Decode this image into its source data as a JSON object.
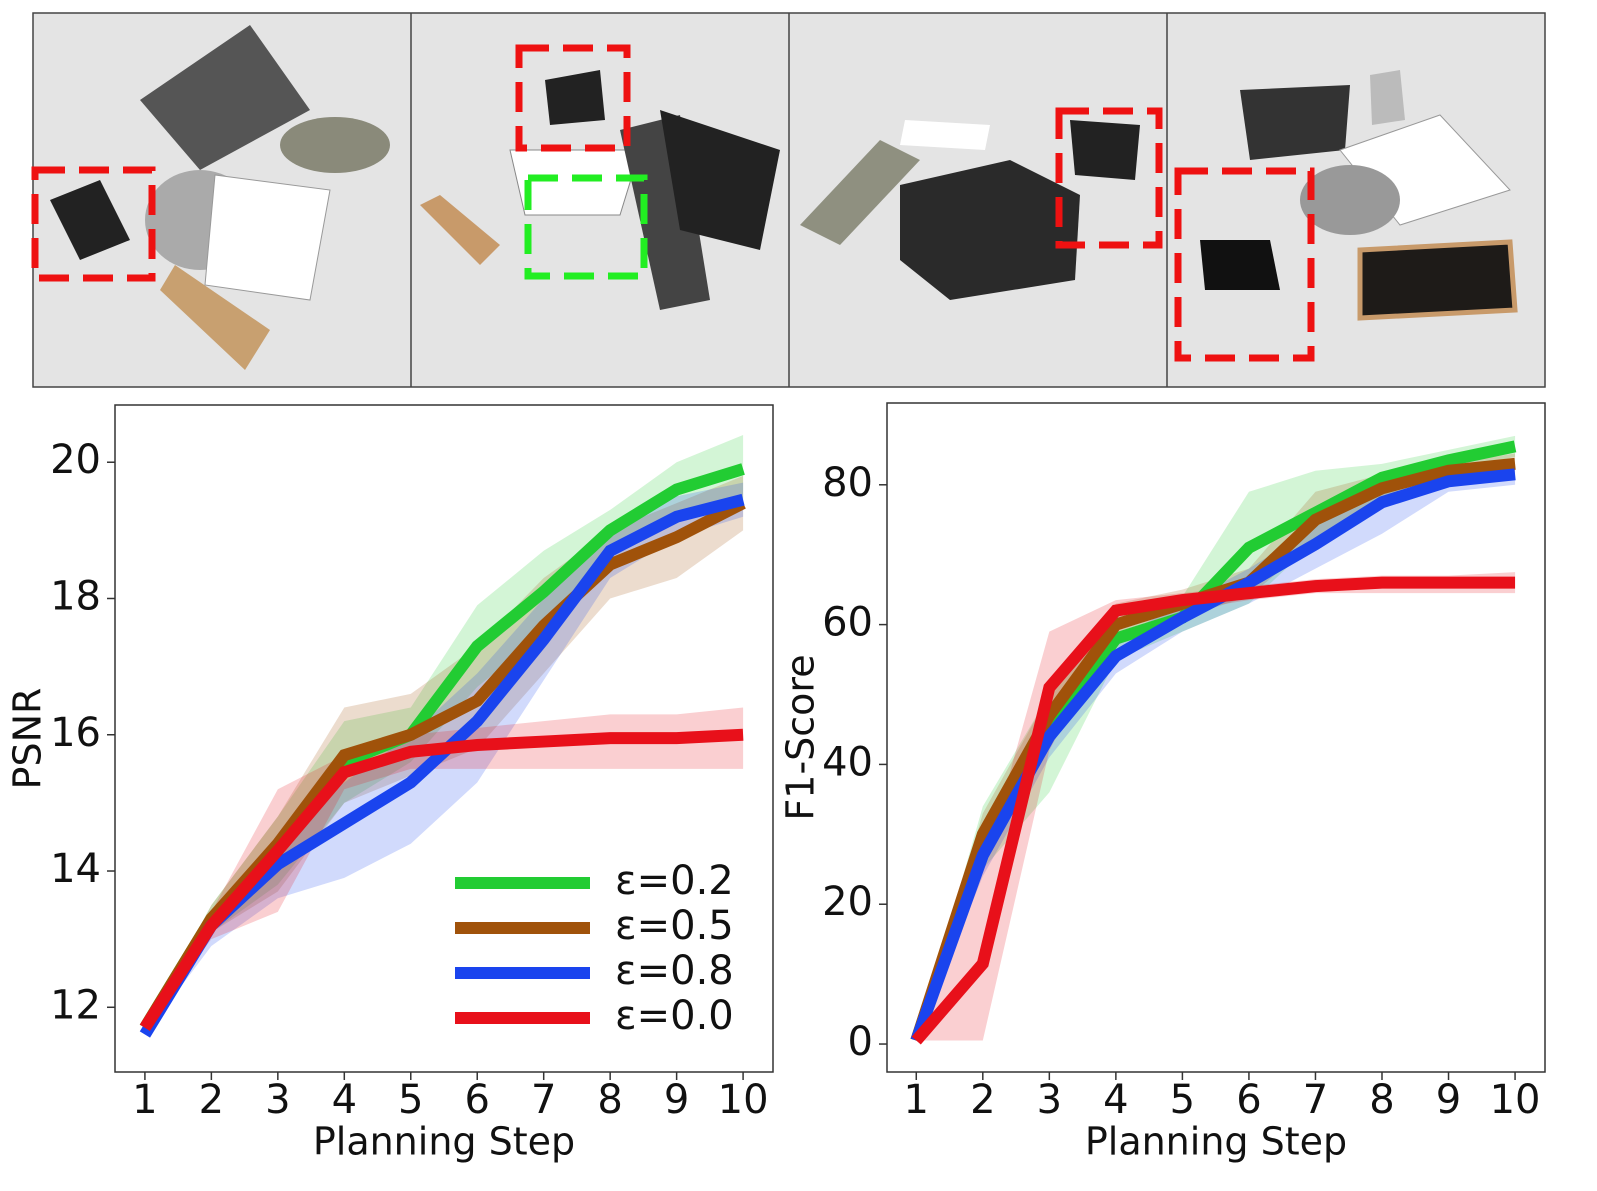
{
  "chart_data": [
    {
      "type": "line",
      "xlabel": "Planning Step",
      "ylabel": "PSNR",
      "x": [
        1,
        2,
        3,
        4,
        5,
        6,
        7,
        8,
        9,
        10
      ],
      "xlim": [
        0.55,
        10.45
      ],
      "xticks": [
        1,
        2,
        3,
        4,
        5,
        6,
        7,
        8,
        9,
        10
      ],
      "ylim": [
        11.05,
        20.84
      ],
      "yticks": [
        12,
        14,
        16,
        18,
        20
      ],
      "legend": true,
      "legend_loc": "lower right",
      "band_opacity": 0.2,
      "series": [
        {
          "name": "ε=0.2",
          "color": "#22cc33",
          "values": [
            11.7,
            13.3,
            14.3,
            15.6,
            16.0,
            17.3,
            18.1,
            19.0,
            19.6,
            19.9
          ],
          "upper": [
            11.7,
            13.5,
            14.8,
            16.2,
            16.4,
            17.9,
            18.7,
            19.3,
            20.0,
            20.4
          ],
          "lower": [
            11.7,
            13.1,
            13.8,
            15.0,
            15.6,
            16.7,
            17.5,
            18.7,
            19.2,
            19.4
          ]
        },
        {
          "name": "ε=0.5",
          "color": "#a0520a",
          "values": [
            11.7,
            13.3,
            14.4,
            15.7,
            16.0,
            16.5,
            17.6,
            18.5,
            18.9,
            19.4
          ],
          "upper": [
            11.7,
            13.5,
            14.8,
            16.4,
            16.6,
            17.3,
            18.3,
            19.0,
            19.4,
            19.8
          ],
          "lower": [
            11.7,
            13.1,
            13.7,
            15.0,
            15.4,
            15.8,
            16.9,
            18.0,
            18.3,
            19.0
          ]
        },
        {
          "name": "ε=0.8",
          "color": "#1a44ee",
          "values": [
            11.6,
            13.2,
            14.1,
            14.7,
            15.3,
            16.2,
            17.4,
            18.7,
            19.2,
            19.45
          ],
          "upper": [
            11.6,
            13.4,
            14.5,
            15.3,
            16.0,
            16.9,
            18.0,
            19.0,
            19.5,
            19.7
          ],
          "lower": [
            11.6,
            12.9,
            13.6,
            13.9,
            14.4,
            15.3,
            16.8,
            18.3,
            18.9,
            19.2
          ]
        },
        {
          "name": "ε=0.0",
          "color": "#e8101a",
          "values": [
            11.7,
            13.2,
            14.3,
            15.45,
            15.75,
            15.85,
            15.9,
            15.95,
            15.95,
            16.0
          ],
          "upper": [
            11.7,
            13.4,
            15.2,
            15.7,
            16.0,
            16.1,
            16.2,
            16.3,
            16.3,
            16.4
          ],
          "lower": [
            11.7,
            13.0,
            13.4,
            15.2,
            15.5,
            15.5,
            15.5,
            15.5,
            15.5,
            15.5
          ]
        }
      ]
    },
    {
      "type": "line",
      "xlabel": "Planning Step",
      "ylabel": "F1-Score",
      "x": [
        1,
        2,
        3,
        4,
        5,
        6,
        7,
        8,
        9,
        10
      ],
      "xlim": [
        0.56,
        10.45
      ],
      "xticks": [
        1,
        2,
        3,
        4,
        5,
        6,
        7,
        8,
        9,
        10
      ],
      "ylim": [
        -4,
        91.7
      ],
      "yticks": [
        0,
        20,
        40,
        60,
        80
      ],
      "legend": false,
      "band_opacity": 0.2,
      "series": [
        {
          "color": "#22cc33",
          "values": [
            0.5,
            29,
            45,
            58,
            61,
            71,
            76,
            81,
            83.5,
            85.5
          ],
          "upper": [
            0.5,
            34,
            50,
            61,
            64,
            79,
            82,
            83,
            85,
            87
          ],
          "lower": [
            0.5,
            25,
            36,
            55,
            59,
            63,
            72,
            78,
            82,
            84
          ]
        },
        {
          "color": "#a0520a",
          "values": [
            0.5,
            30,
            47,
            60,
            63,
            66,
            75,
            79.5,
            82,
            83
          ],
          "upper": [
            0.5,
            33,
            50,
            63,
            65,
            68,
            79,
            81.5,
            83,
            84.5
          ],
          "lower": [
            0.5,
            27,
            44,
            57,
            61,
            64,
            72,
            77,
            81,
            81.5
          ]
        },
        {
          "color": "#1a44ee",
          "values": [
            0.5,
            27,
            44,
            55.5,
            61,
            66,
            71.5,
            77.5,
            80.5,
            81.5
          ],
          "upper": [
            0.5,
            30,
            47,
            58,
            63,
            68,
            74,
            79,
            82,
            83
          ],
          "lower": [
            0.5,
            24,
            41,
            53,
            59,
            63,
            68,
            73,
            79,
            80
          ]
        },
        {
          "color": "#e8101a",
          "values": [
            0.5,
            11.5,
            51,
            62,
            63.5,
            64.5,
            65.5,
            66,
            66,
            66
          ],
          "upper": [
            0.5,
            25,
            59,
            63.5,
            64.5,
            65.5,
            66.5,
            67,
            67,
            67.5
          ],
          "lower": [
            0.5,
            0.5,
            42,
            60,
            62,
            63.5,
            64.5,
            64.5,
            64.5,
            64.5
          ]
        }
      ]
    }
  ]
}
